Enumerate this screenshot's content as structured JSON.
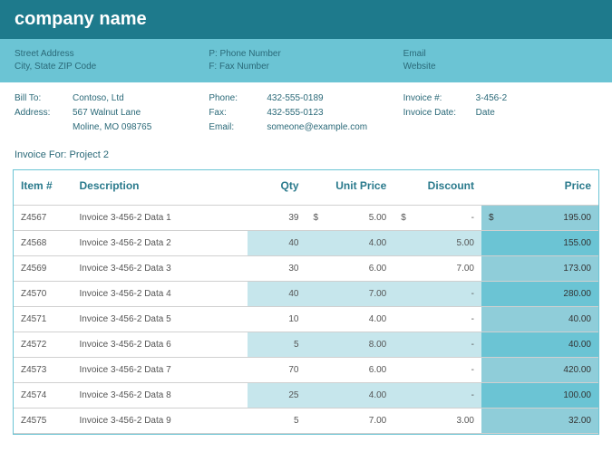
{
  "header": {
    "company_name": "company name",
    "address_line1": "Street Address",
    "address_line2": "City, State ZIP Code",
    "phone_label": "P: Phone Number",
    "fax_label": "F: Fax Number",
    "email_label": "Email",
    "website_label": "Website"
  },
  "bill": {
    "bill_to_label": "Bill To:",
    "bill_to_value": "Contoso, Ltd",
    "address_label": "Address:",
    "address_line1": "567 Walnut Lane",
    "address_line2": "Moline, MO 098765",
    "phone_label": "Phone:",
    "phone_value": "432-555-0189",
    "fax_label": "Fax:",
    "fax_value": "432-555-0123",
    "email_label": "Email:",
    "email_value": "someone@example.com",
    "invoice_num_label": "Invoice #:",
    "invoice_num_value": "3-456-2",
    "invoice_date_label": "Invoice Date:",
    "invoice_date_value": "Date"
  },
  "invoice_for_label": "Invoice For: Project 2",
  "table": {
    "columns": {
      "item": "Item #",
      "description": "Description",
      "qty": "Qty",
      "unit_price": "Unit Price",
      "discount": "Discount",
      "price": "Price"
    },
    "rows": [
      {
        "item": "Z4567",
        "desc": "Invoice 3-456-2 Data 1",
        "qty": "39",
        "unit_sym": "$",
        "unit": "5.00",
        "disc_sym": "$",
        "disc": "-",
        "price_sym": "$",
        "price": "195.00"
      },
      {
        "item": "Z4568",
        "desc": "Invoice 3-456-2 Data 2",
        "qty": "40",
        "unit_sym": "",
        "unit": "4.00",
        "disc_sym": "",
        "disc": "5.00",
        "price_sym": "",
        "price": "155.00"
      },
      {
        "item": "Z4569",
        "desc": "Invoice 3-456-2 Data 3",
        "qty": "30",
        "unit_sym": "",
        "unit": "6.00",
        "disc_sym": "",
        "disc": "7.00",
        "price_sym": "",
        "price": "173.00"
      },
      {
        "item": "Z4570",
        "desc": "Invoice 3-456-2 Data 4",
        "qty": "40",
        "unit_sym": "",
        "unit": "7.00",
        "disc_sym": "",
        "disc": "-",
        "price_sym": "",
        "price": "280.00"
      },
      {
        "item": "Z4571",
        "desc": "Invoice 3-456-2 Data 5",
        "qty": "10",
        "unit_sym": "",
        "unit": "4.00",
        "disc_sym": "",
        "disc": "-",
        "price_sym": "",
        "price": "40.00"
      },
      {
        "item": "Z4572",
        "desc": "Invoice 3-456-2 Data 6",
        "qty": "5",
        "unit_sym": "",
        "unit": "8.00",
        "disc_sym": "",
        "disc": "-",
        "price_sym": "",
        "price": "40.00"
      },
      {
        "item": "Z4573",
        "desc": "Invoice 3-456-2 Data 7",
        "qty": "70",
        "unit_sym": "",
        "unit": "6.00",
        "disc_sym": "",
        "disc": "-",
        "price_sym": "",
        "price": "420.00"
      },
      {
        "item": "Z4574",
        "desc": "Invoice 3-456-2 Data 8",
        "qty": "25",
        "unit_sym": "",
        "unit": "4.00",
        "disc_sym": "",
        "disc": "-",
        "price_sym": "",
        "price": "100.00"
      },
      {
        "item": "Z4575",
        "desc": "Invoice 3-456-2 Data 9",
        "qty": "5",
        "unit_sym": "",
        "unit": "7.00",
        "disc_sym": "",
        "disc": "3.00",
        "price_sym": "",
        "price": "32.00"
      }
    ]
  },
  "colors": {
    "header_dark": "#1e7a8c",
    "header_light": "#6bc4d4",
    "alt_row": "#c6e6ec",
    "price_col": "#8fcdd9",
    "price_col_alt": "#6bc4d4",
    "text_teal": "#2a6978"
  }
}
